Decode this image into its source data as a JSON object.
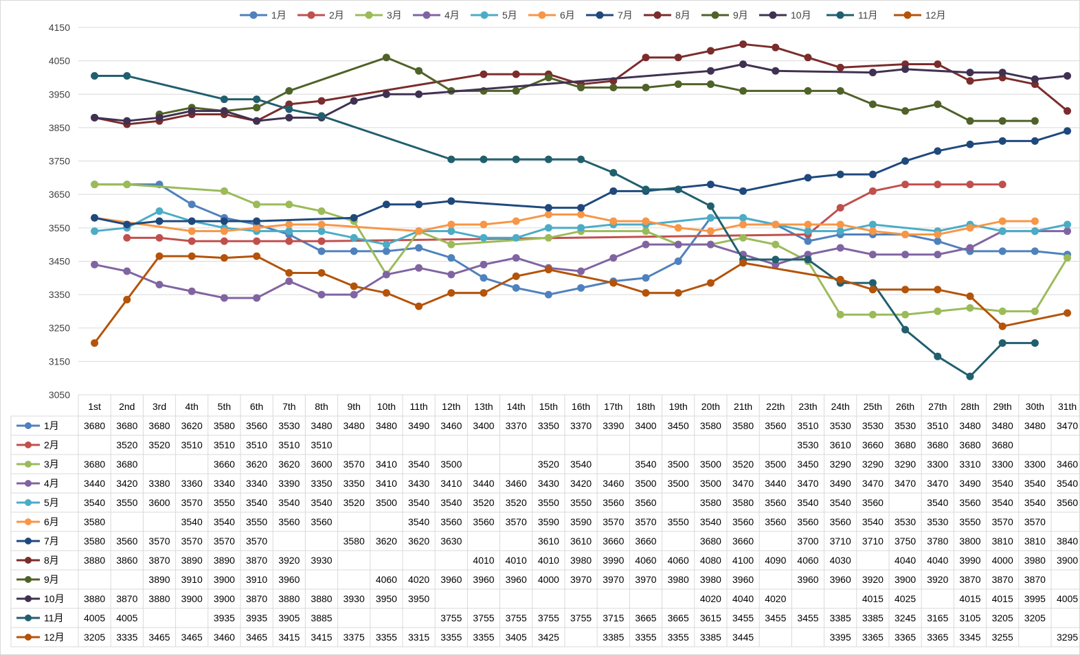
{
  "chart_data": {
    "type": "line",
    "title": "",
    "xlabel": "",
    "ylabel": "",
    "ylim": [
      3050,
      4150
    ],
    "yticks": [
      3050,
      3150,
      3250,
      3350,
      3450,
      3550,
      3650,
      3750,
      3850,
      3950,
      4050,
      4150
    ],
    "grid": true,
    "legend_position": "top",
    "table_below": true,
    "categories": [
      "1st",
      "2nd",
      "3rd",
      "4th",
      "5th",
      "6th",
      "7th",
      "8th",
      "9th",
      "10th",
      "11th",
      "12th",
      "13th",
      "14th",
      "15th",
      "16th",
      "17th",
      "18th",
      "19th",
      "20th",
      "21th",
      "22th",
      "23th",
      "24th",
      "25th",
      "26th",
      "27th",
      "28th",
      "29th",
      "30th",
      "31th"
    ],
    "series": [
      {
        "name": "1月",
        "color": "#4F81BD",
        "values": [
          3680,
          3680,
          3680,
          3620,
          3580,
          3560,
          3530,
          3480,
          3480,
          3480,
          3490,
          3460,
          3400,
          3370,
          3350,
          3370,
          3390,
          3400,
          3450,
          3580,
          3580,
          3560,
          3510,
          3530,
          3530,
          3530,
          3510,
          3480,
          3480,
          3480,
          3470
        ]
      },
      {
        "name": "2月",
        "color": "#C0504D",
        "values": [
          null,
          3520,
          3520,
          3510,
          3510,
          3510,
          3510,
          3510,
          null,
          null,
          null,
          null,
          null,
          null,
          null,
          null,
          null,
          null,
          null,
          null,
          null,
          null,
          3530,
          3610,
          3660,
          3680,
          3680,
          3680,
          3680,
          null,
          null
        ]
      },
      {
        "name": "3月",
        "color": "#9BBB59",
        "values": [
          3680,
          3680,
          null,
          null,
          3660,
          3620,
          3620,
          3600,
          3570,
          3410,
          3540,
          3500,
          null,
          null,
          3520,
          3540,
          null,
          3540,
          3500,
          3500,
          3520,
          3500,
          3450,
          3290,
          3290,
          3290,
          3300,
          3310,
          3300,
          3300,
          3460
        ]
      },
      {
        "name": "4月",
        "color": "#8064A2",
        "values": [
          3440,
          3420,
          3380,
          3360,
          3340,
          3340,
          3390,
          3350,
          3350,
          3410,
          3430,
          3410,
          3440,
          3460,
          3430,
          3420,
          3460,
          3500,
          3500,
          3500,
          3470,
          3440,
          3470,
          3490,
          3470,
          3470,
          3470,
          3490,
          3540,
          3540,
          3540
        ]
      },
      {
        "name": "5月",
        "color": "#4BACC6",
        "values": [
          3540,
          3550,
          3600,
          3570,
          3550,
          3540,
          3540,
          3540,
          3520,
          3500,
          3540,
          3540,
          3520,
          3520,
          3550,
          3550,
          3560,
          3560,
          null,
          3580,
          3580,
          3560,
          3540,
          3540,
          3560,
          null,
          3540,
          3560,
          3540,
          3540,
          3560
        ]
      },
      {
        "name": "6月",
        "color": "#F79646",
        "values": [
          3580,
          null,
          null,
          3540,
          3540,
          3550,
          3560,
          3560,
          null,
          null,
          3540,
          3560,
          3560,
          3570,
          3590,
          3590,
          3570,
          3570,
          3550,
          3540,
          3560,
          3560,
          3560,
          3560,
          3540,
          3530,
          3530,
          3550,
          3570,
          3570,
          null
        ]
      },
      {
        "name": "7月",
        "color": "#1F497D",
        "values": [
          3580,
          3560,
          3570,
          3570,
          3570,
          3570,
          null,
          null,
          3580,
          3620,
          3620,
          3630,
          null,
          null,
          3610,
          3610,
          3660,
          3660,
          null,
          3680,
          3660,
          null,
          3700,
          3710,
          3710,
          3750,
          3780,
          3800,
          3810,
          3810,
          3840
        ]
      },
      {
        "name": "8月",
        "color": "#7B2C2C",
        "values": [
          3880,
          3860,
          3870,
          3890,
          3890,
          3870,
          3920,
          3930,
          null,
          null,
          null,
          null,
          4010,
          4010,
          4010,
          3980,
          3990,
          4060,
          4060,
          4080,
          4100,
          4090,
          4060,
          4030,
          null,
          4040,
          4040,
          3990,
          4000,
          3980,
          3900
        ]
      },
      {
        "name": "9月",
        "color": "#4F6228",
        "values": [
          null,
          null,
          3890,
          3910,
          3900,
          3910,
          3960,
          null,
          null,
          4060,
          4020,
          3960,
          3960,
          3960,
          4000,
          3970,
          3970,
          3970,
          3980,
          3980,
          3960,
          null,
          3960,
          3960,
          3920,
          3900,
          3920,
          3870,
          3870,
          3870,
          null
        ]
      },
      {
        "name": "10月",
        "color": "#403152",
        "values": [
          3880,
          3870,
          3880,
          3900,
          3900,
          3870,
          3880,
          3880,
          3930,
          3950,
          3950,
          null,
          null,
          null,
          null,
          null,
          null,
          null,
          null,
          4020,
          4040,
          4020,
          null,
          null,
          4015,
          4025,
          null,
          4015,
          4015,
          3995,
          4005
        ]
      },
      {
        "name": "11月",
        "color": "#215F6E",
        "values": [
          4005,
          4005,
          null,
          null,
          3935,
          3935,
          3905,
          3885,
          null,
          null,
          null,
          3755,
          3755,
          3755,
          3755,
          3755,
          3715,
          3665,
          3665,
          3615,
          3455,
          3455,
          3455,
          3385,
          3385,
          3245,
          3165,
          3105,
          3205,
          3205,
          null
        ]
      },
      {
        "name": "12月",
        "color": "#B45309",
        "values": [
          3205,
          3335,
          3465,
          3465,
          3460,
          3465,
          3415,
          3415,
          3375,
          3355,
          3315,
          3355,
          3355,
          3405,
          3425,
          null,
          3385,
          3355,
          3355,
          3385,
          3445,
          null,
          null,
          3395,
          3365,
          3365,
          3365,
          3345,
          3255,
          null,
          3295
        ]
      }
    ]
  }
}
